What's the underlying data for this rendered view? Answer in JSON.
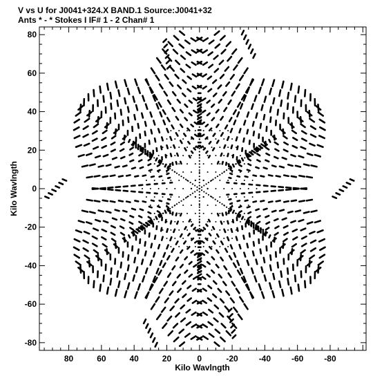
{
  "chart_data": {
    "type": "scatter",
    "title": "V vs U for J0041+324.X BAND.1   Source:J0041+32",
    "subtitle": "Ants * - *    Stokes I  IF# 1 - 2  Chan# 1",
    "xlabel": "Kilo Wavlngth",
    "ylabel": "Kilo Wavlngth",
    "xlim": [
      98,
      -102
    ],
    "ylim": [
      -84,
      84
    ],
    "xticks": [
      80,
      60,
      40,
      20,
      0,
      -20,
      -40,
      -60,
      -80
    ],
    "yticks": [
      80,
      60,
      40,
      20,
      0,
      -20,
      -40,
      -60,
      -80
    ],
    "xtick_labels": [
      "80",
      "60",
      "40",
      "20",
      "0",
      "-20",
      "-40",
      "-60",
      "-80"
    ],
    "ytick_labels": [
      "80",
      "60",
      "40",
      "20",
      "0",
      "-20",
      "-40",
      "-60",
      "-80"
    ],
    "grid": false,
    "colors": {
      "points": "#000000",
      "frame": "#000000"
    },
    "arm_directions_deg": [
      90,
      150,
      210,
      270,
      330,
      30
    ],
    "tracks": [
      {
        "u": 0,
        "v": 40,
        "length": 10,
        "angle_deg": 90,
        "marks": 7
      },
      {
        "u": 0,
        "v": -40,
        "length": 10,
        "angle_deg": 90,
        "marks": 7
      },
      {
        "u": 34.6,
        "v": 20,
        "length": 10,
        "angle_deg": 30,
        "marks": 7
      },
      {
        "u": -34.6,
        "v": -20,
        "length": 10,
        "angle_deg": 30,
        "marks": 7
      },
      {
        "u": -34.6,
        "v": 20,
        "length": 10,
        "angle_deg": 150,
        "marks": 7
      },
      {
        "u": 34.6,
        "v": -20,
        "length": 10,
        "angle_deg": 150,
        "marks": 7
      },
      {
        "u": 20,
        "v": 70,
        "length": 14,
        "angle_deg": 80,
        "marks": 6
      },
      {
        "u": -30,
        "v": 75,
        "length": 14,
        "angle_deg": 60,
        "marks": 6
      },
      {
        "u": -20,
        "v": -70,
        "length": 14,
        "angle_deg": 80,
        "marks": 6
      },
      {
        "u": 30,
        "v": -75,
        "length": 14,
        "angle_deg": 60,
        "marks": 6
      },
      {
        "u": 88,
        "v": 0,
        "length": 14,
        "angle_deg": 140,
        "marks": 6
      },
      {
        "u": -88,
        "v": 0,
        "length": 14,
        "angle_deg": 140,
        "marks": 6
      }
    ]
  }
}
